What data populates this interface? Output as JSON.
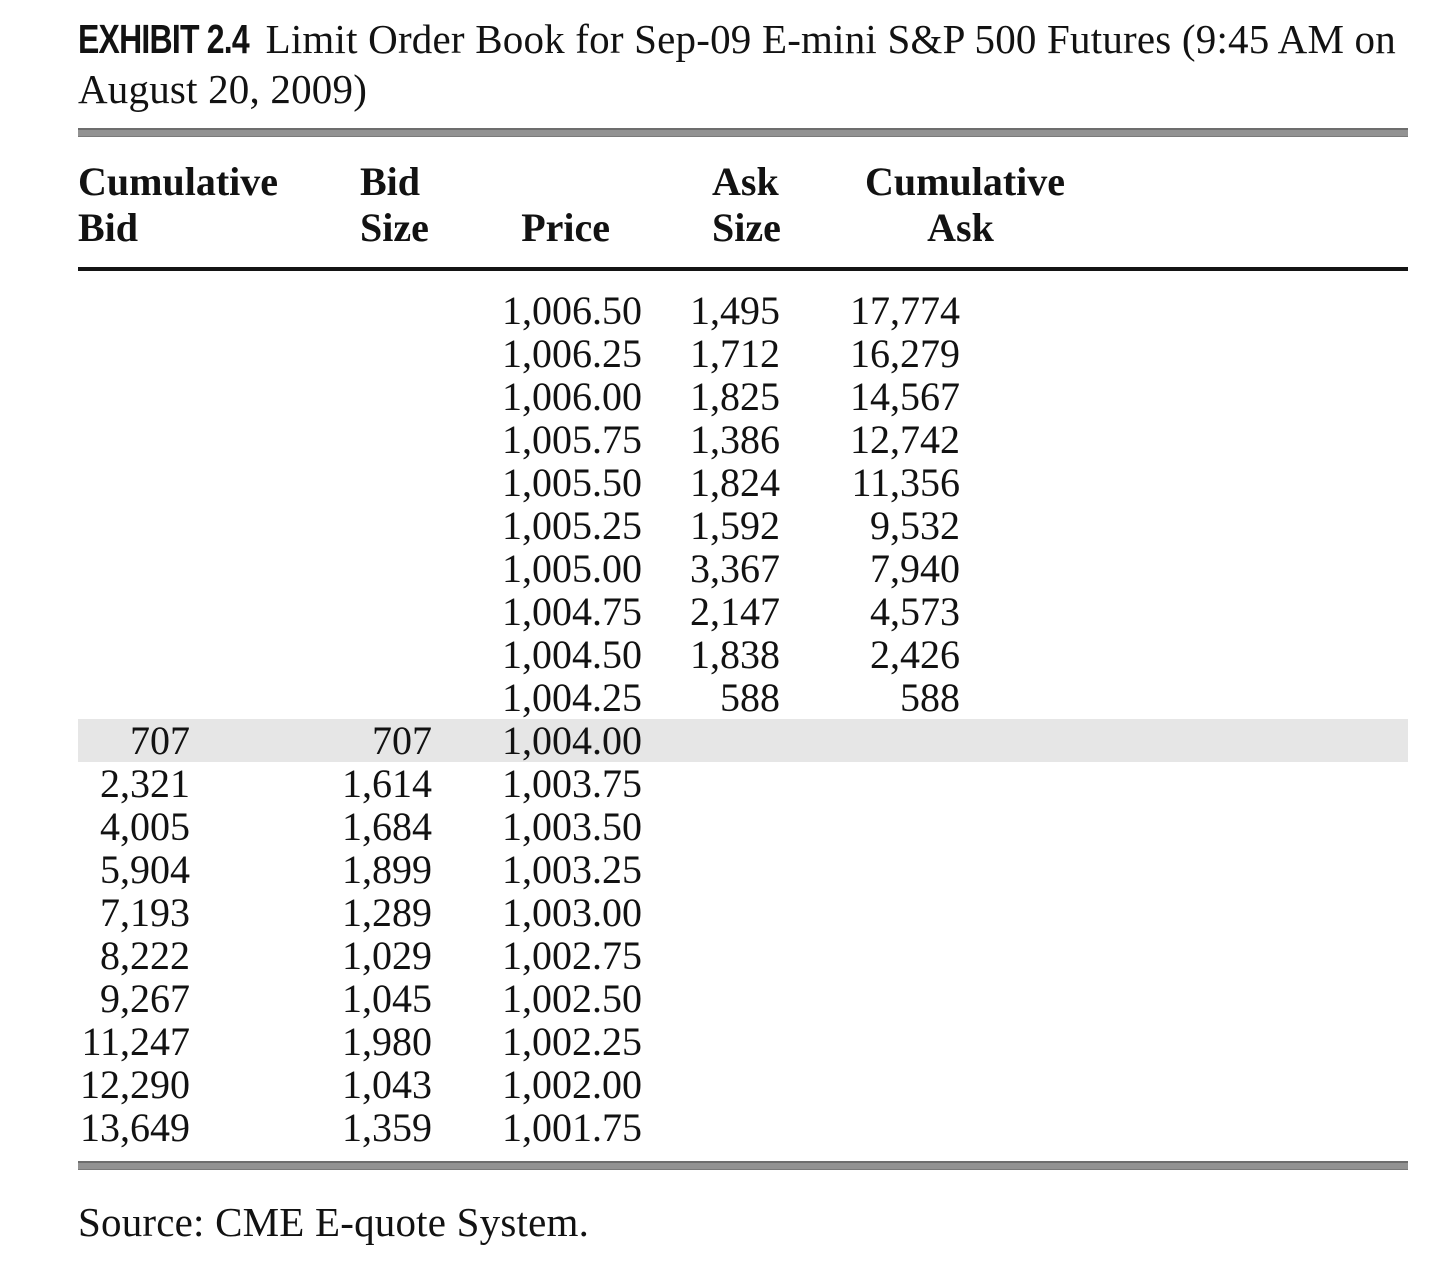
{
  "exhibit": {
    "label": "EXHIBIT 2.4",
    "title": "Limit Order Book for Sep-09 E-mini S&P 500 Futures (9:45 AM on August 20, 2009)"
  },
  "table": {
    "column_headers": [
      {
        "line1": "Cumulative",
        "line2": "Bid"
      },
      {
        "line1": "Bid",
        "line2": "Size"
      },
      {
        "line1": "",
        "line2": "Price"
      },
      {
        "line1": "Ask",
        "line2": "Size"
      },
      {
        "line1": "Cumulative",
        "line2": "Ask"
      }
    ],
    "rows": [
      {
        "cumulative_bid": "",
        "bid_size": "",
        "price": "1,006.50",
        "ask_size": "1,495",
        "cumulative_ask": "17,774",
        "highlight": false
      },
      {
        "cumulative_bid": "",
        "bid_size": "",
        "price": "1,006.25",
        "ask_size": "1,712",
        "cumulative_ask": "16,279",
        "highlight": false
      },
      {
        "cumulative_bid": "",
        "bid_size": "",
        "price": "1,006.00",
        "ask_size": "1,825",
        "cumulative_ask": "14,567",
        "highlight": false
      },
      {
        "cumulative_bid": "",
        "bid_size": "",
        "price": "1,005.75",
        "ask_size": "1,386",
        "cumulative_ask": "12,742",
        "highlight": false
      },
      {
        "cumulative_bid": "",
        "bid_size": "",
        "price": "1,005.50",
        "ask_size": "1,824",
        "cumulative_ask": "11,356",
        "highlight": false
      },
      {
        "cumulative_bid": "",
        "bid_size": "",
        "price": "1,005.25",
        "ask_size": "1,592",
        "cumulative_ask": "9,532",
        "highlight": false
      },
      {
        "cumulative_bid": "",
        "bid_size": "",
        "price": "1,005.00",
        "ask_size": "3,367",
        "cumulative_ask": "7,940",
        "highlight": false
      },
      {
        "cumulative_bid": "",
        "bid_size": "",
        "price": "1,004.75",
        "ask_size": "2,147",
        "cumulative_ask": "4,573",
        "highlight": false
      },
      {
        "cumulative_bid": "",
        "bid_size": "",
        "price": "1,004.50",
        "ask_size": "1,838",
        "cumulative_ask": "2,426",
        "highlight": false
      },
      {
        "cumulative_bid": "",
        "bid_size": "",
        "price": "1,004.25",
        "ask_size": "588",
        "cumulative_ask": "588",
        "highlight": false
      },
      {
        "cumulative_bid": "707",
        "bid_size": "707",
        "price": "1,004.00",
        "ask_size": "",
        "cumulative_ask": "",
        "highlight": true
      },
      {
        "cumulative_bid": "2,321",
        "bid_size": "1,614",
        "price": "1,003.75",
        "ask_size": "",
        "cumulative_ask": "",
        "highlight": false
      },
      {
        "cumulative_bid": "4,005",
        "bid_size": "1,684",
        "price": "1,003.50",
        "ask_size": "",
        "cumulative_ask": "",
        "highlight": false
      },
      {
        "cumulative_bid": "5,904",
        "bid_size": "1,899",
        "price": "1,003.25",
        "ask_size": "",
        "cumulative_ask": "",
        "highlight": false
      },
      {
        "cumulative_bid": "7,193",
        "bid_size": "1,289",
        "price": "1,003.00",
        "ask_size": "",
        "cumulative_ask": "",
        "highlight": false
      },
      {
        "cumulative_bid": "8,222",
        "bid_size": "1,029",
        "price": "1,002.75",
        "ask_size": "",
        "cumulative_ask": "",
        "highlight": false
      },
      {
        "cumulative_bid": "9,267",
        "bid_size": "1,045",
        "price": "1,002.50",
        "ask_size": "",
        "cumulative_ask": "",
        "highlight": false
      },
      {
        "cumulative_bid": "11,247",
        "bid_size": "1,980",
        "price": "1,002.25",
        "ask_size": "",
        "cumulative_ask": "",
        "highlight": false
      },
      {
        "cumulative_bid": "12,290",
        "bid_size": "1,043",
        "price": "1,002.00",
        "ask_size": "",
        "cumulative_ask": "",
        "highlight": false
      },
      {
        "cumulative_bid": "13,649",
        "bid_size": "1,359",
        "price": "1,001.75",
        "ask_size": "",
        "cumulative_ask": "",
        "highlight": false
      }
    ]
  },
  "source_note": "Source: CME E-quote System."
}
